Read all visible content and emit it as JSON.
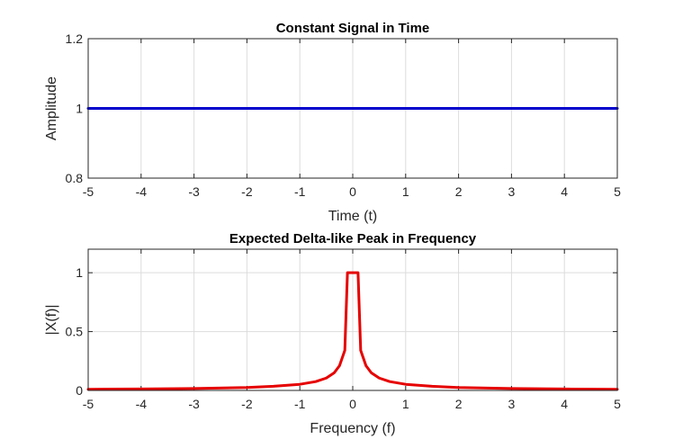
{
  "chart_data": [
    {
      "type": "line",
      "title": "Constant Signal in Time",
      "xlabel": "Time (t)",
      "ylabel": "Amplitude",
      "xlim": [
        -5,
        5
      ],
      "ylim": [
        0.8,
        1.2
      ],
      "xticks": [
        "-5",
        "-4",
        "-3",
        "-2",
        "-1",
        "0",
        "1",
        "2",
        "3",
        "4",
        "5"
      ],
      "yticks": [
        "0.8",
        "1",
        "1.2"
      ],
      "grid": true,
      "color": "#0000cc",
      "series": [
        {
          "x": [
            -5,
            5
          ],
          "y": [
            1,
            1
          ]
        }
      ]
    },
    {
      "type": "line",
      "title": "Expected Delta-like Peak in Frequency",
      "xlabel": "Frequency (f)",
      "ylabel": "|X(f)|",
      "xlim": [
        -5,
        5
      ],
      "ylim": [
        0,
        1.2
      ],
      "xticks": [
        "-5",
        "-4",
        "-3",
        "-2",
        "-1",
        "0",
        "1",
        "2",
        "3",
        "4",
        "5"
      ],
      "yticks": [
        "0",
        "0.5",
        "1"
      ],
      "grid": true,
      "color": "#e60000",
      "series": [
        {
          "x": [
            -5,
            -4,
            -3,
            -2,
            -1.5,
            -1,
            -0.7,
            -0.5,
            -0.35,
            -0.25,
            -0.15,
            -0.1,
            -0.05,
            0,
            0.05,
            0.1,
            0.15,
            0.25,
            0.35,
            0.5,
            0.7,
            1,
            1.5,
            2,
            3,
            4,
            5
          ],
          "y": [
            0.01,
            0.012,
            0.016,
            0.025,
            0.035,
            0.052,
            0.075,
            0.105,
            0.15,
            0.21,
            0.34,
            1.0,
            1.0,
            1.0,
            1.0,
            1.0,
            0.34,
            0.21,
            0.15,
            0.105,
            0.075,
            0.052,
            0.035,
            0.025,
            0.016,
            0.012,
            0.01
          ]
        }
      ]
    }
  ]
}
